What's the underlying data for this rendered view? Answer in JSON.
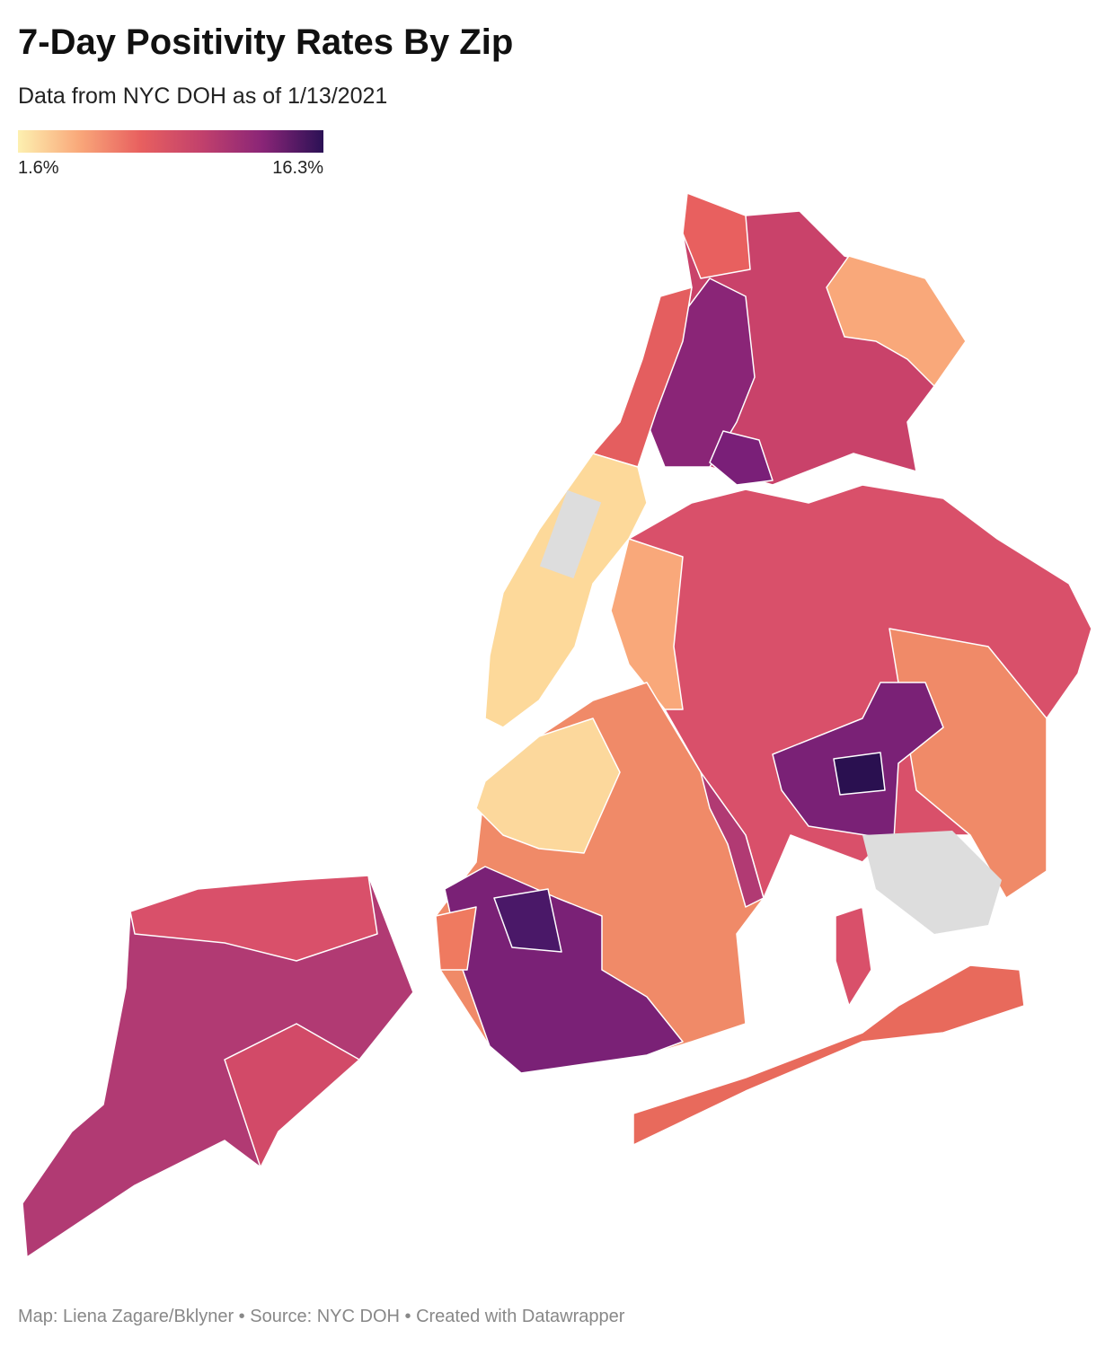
{
  "header": {
    "title": "7-Day Positivity Rates By Zip",
    "subtitle": "Data from NYC DOH as of 1/13/2021"
  },
  "legend": {
    "range": [
      1.6,
      16.3
    ],
    "colors": [
      "#fdf0b0",
      "#f9a87a",
      "#e8605f",
      "#c2416c",
      "#8a2577",
      "#2b1155"
    ],
    "ticks": [
      {
        "value": 1.6,
        "label": "1.6%"
      },
      {
        "value": 16.3,
        "label": "16.3%"
      }
    ]
  },
  "footer": "Map: Liena Zagare/Bklyner • Source: NYC DOH • Created with Datawrapper"
}
